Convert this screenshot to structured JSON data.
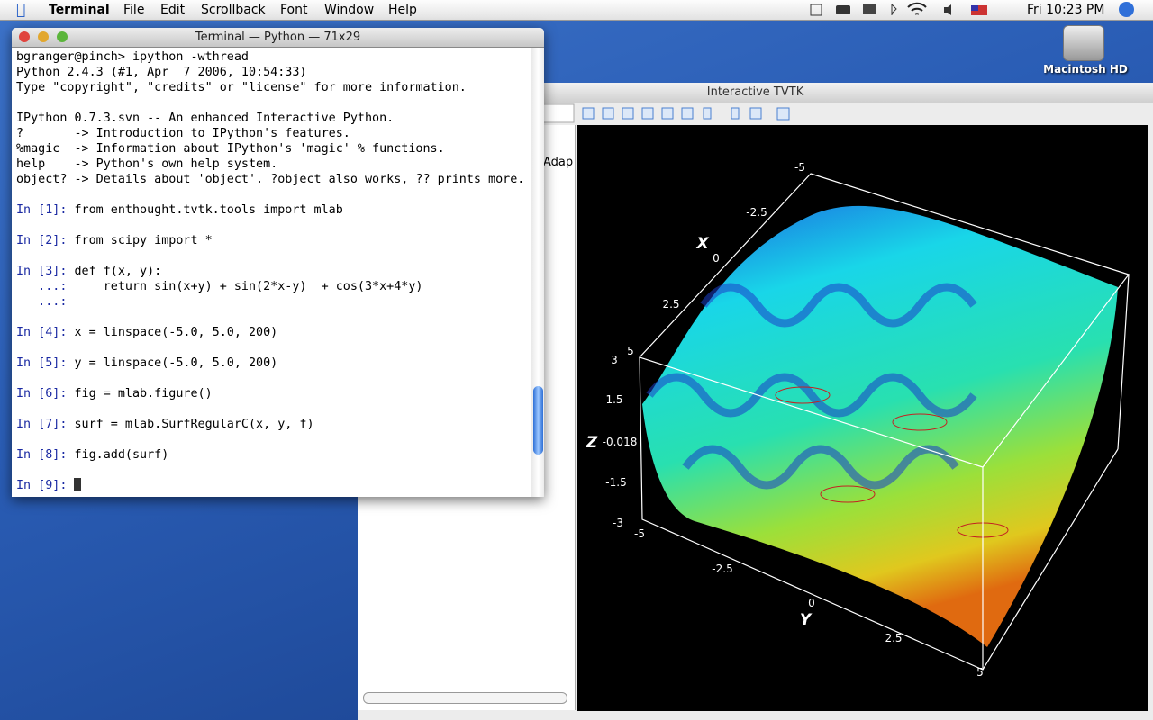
{
  "menubar": {
    "app": "Terminal",
    "items": [
      "File",
      "Edit",
      "Scrollback",
      "Font",
      "Window",
      "Help"
    ],
    "clock": "Fri 10:23 PM"
  },
  "desktop": {
    "icons": [
      "Macintosh HD"
    ]
  },
  "terminal": {
    "title": "Terminal — Python — 71x29",
    "blocks": [
      [
        "bgranger@pinch> ipython -wthread",
        "Python 2.4.3 (#1, Apr  7 2006, 10:54:33)",
        "Type \"copyright\", \"credits\" or \"license\" for more information."
      ],
      [
        "IPython 0.7.3.svn -- An enhanced Interactive Python.",
        "?       -> Introduction to IPython's features.",
        "%magic  -> Information about IPython's 'magic' % functions.",
        "help    -> Python's own help system.",
        "object? -> Details about 'object'. ?object also works, ?? prints more."
      ]
    ],
    "cells": [
      [
        {
          "prompt": "In [1]:",
          "code": " from enthought.tvtk.tools import mlab"
        }
      ],
      [
        {
          "prompt": "In [2]:",
          "code": " from scipy import *"
        }
      ],
      [
        {
          "prompt": "In [3]:",
          "code": " def f(x, y):"
        },
        {
          "prompt": "   ...:",
          "code": "     return sin(x+y) + sin(2*x-y)  + cos(3*x+4*y)"
        },
        {
          "prompt": "   ...:"
        }
      ],
      [
        {
          "prompt": "In [4]:",
          "code": " x = linspace(-5.0, 5.0, 200)"
        }
      ],
      [
        {
          "prompt": "In [5]:",
          "code": " y = linspace(-5.0, 5.0, 200)"
        }
      ],
      [
        {
          "prompt": "In [6]:",
          "code": " fig = mlab.figure()"
        }
      ],
      [
        {
          "prompt": "In [7]:",
          "code": " surf = mlab.SurfRegularC(x, y, f)"
        }
      ],
      [
        {
          "prompt": "In [8]:",
          "code": " fig.add(surf)"
        }
      ],
      [
        {
          "prompt": "In [9]:"
        }
      ]
    ]
  },
  "tvtk": {
    "title": "Interactive TVTK",
    "panel_text": "Adap",
    "axes": [
      {
        "title": "X",
        "ticks": [
          "-5",
          "-2.5",
          "0",
          "2.5",
          "5"
        ]
      },
      {
        "title": "Z",
        "ticks": [
          "3",
          "1.5",
          "-0.018",
          "-1.5",
          "-3"
        ]
      },
      {
        "title": "Y",
        "ticks": [
          "-5",
          "-2.5",
          "0",
          "2.5",
          "5"
        ]
      }
    ]
  }
}
